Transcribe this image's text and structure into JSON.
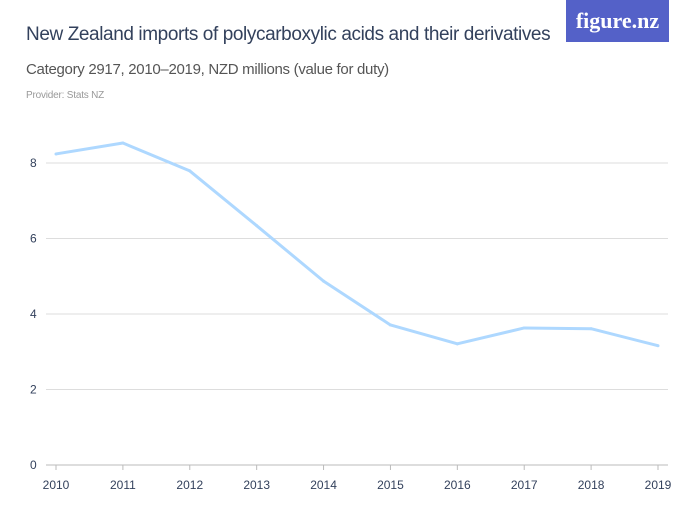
{
  "header": {
    "title": "New Zealand imports of polycarboxylic acids and their derivatives",
    "subtitle": "Category 2917, 2010–2019, NZD millions (value for duty)",
    "provider": "Provider: Stats NZ",
    "logo": "figure.nz"
  },
  "colors": {
    "line": "#aed8ff",
    "grid": "#dddddd",
    "logo_bg": "#5461c8"
  },
  "chart_data": {
    "type": "line",
    "title": "New Zealand imports of polycarboxylic acids and their derivatives",
    "subtitle": "Category 2917, 2010–2019, NZD millions (value for duty)",
    "x": [
      "2010",
      "2011",
      "2012",
      "2013",
      "2014",
      "2015",
      "2016",
      "2017",
      "2018",
      "2019"
    ],
    "values": [
      8.24,
      8.53,
      7.79,
      6.34,
      4.87,
      3.71,
      3.21,
      3.63,
      3.61,
      3.16
    ],
    "yticks": [
      "0",
      "2",
      "4",
      "6",
      "8"
    ],
    "ylim": [
      0,
      9
    ],
    "grid": true,
    "xlabel": "",
    "ylabel": ""
  }
}
